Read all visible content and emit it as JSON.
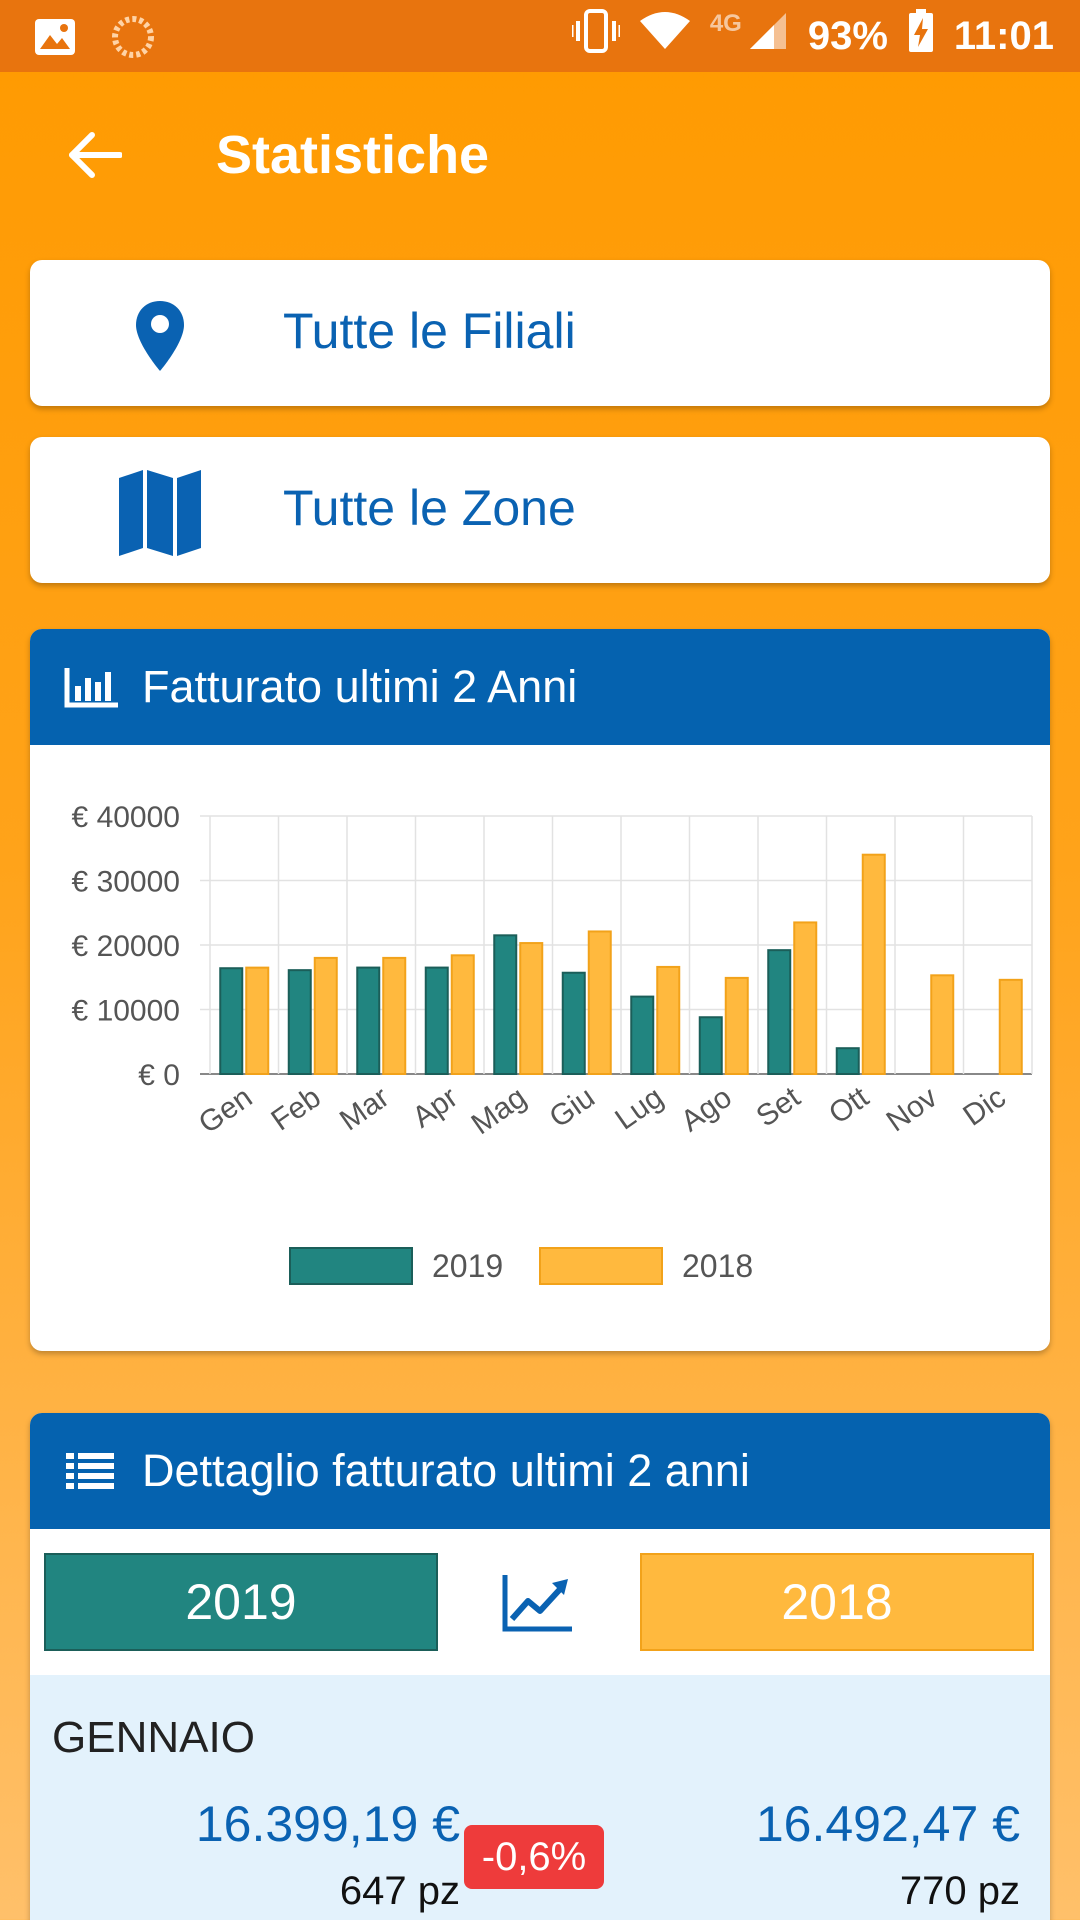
{
  "status_bar": {
    "network": "4G",
    "battery": "93%",
    "time": "11:01"
  },
  "app_bar": {
    "title": "Statistiche",
    "back_icon": "arrow-left-icon"
  },
  "filters": [
    {
      "label": "Tutte le Filiali",
      "icon": "map-pin-icon"
    },
    {
      "label": "Tutte le Zone",
      "icon": "map-icon"
    }
  ],
  "chart_panel": {
    "title": "Fatturato ultimi 2 Anni",
    "icon": "bar-chart-icon"
  },
  "chart_data": {
    "type": "bar",
    "categories": [
      "Gen",
      "Feb",
      "Mar",
      "Apr",
      "Mag",
      "Giu",
      "Lug",
      "Ago",
      "Set",
      "Ott",
      "Nov",
      "Dic"
    ],
    "series": [
      {
        "name": "2019",
        "color": "#218580",
        "values": [
          16399.19,
          16100,
          16500,
          16500,
          21500,
          15700,
          12000,
          8800,
          19200,
          4000,
          0,
          0
        ]
      },
      {
        "name": "2018",
        "color": "#FFB93E",
        "values": [
          16492.47,
          18000,
          18000,
          18400,
          20300,
          22100,
          16600,
          14900,
          23500,
          34000,
          15300,
          14600
        ]
      }
    ],
    "ylim": [
      0,
      40000
    ],
    "yticks": [
      0,
      10000,
      20000,
      30000,
      40000
    ],
    "ytick_labels": [
      "€ 0",
      "€ 10000",
      "€ 20000",
      "€ 30000",
      "€ 40000"
    ],
    "grid": true,
    "legend_position": "bottom"
  },
  "detail_panel": {
    "title": "Dettaglio fatturato ultimi 2 anni",
    "icon": "list-icon",
    "year_current": "2019",
    "year_previous": "2018",
    "trend_icon": "trending-up-icon",
    "rows": [
      {
        "month": "GENNAIO",
        "value_current": "16.399,19 €",
        "pieces_current": "647 pz",
        "delta": "-0,6%",
        "value_previous": "16.492,47 €",
        "pieces_previous": "770 pz"
      }
    ]
  }
}
